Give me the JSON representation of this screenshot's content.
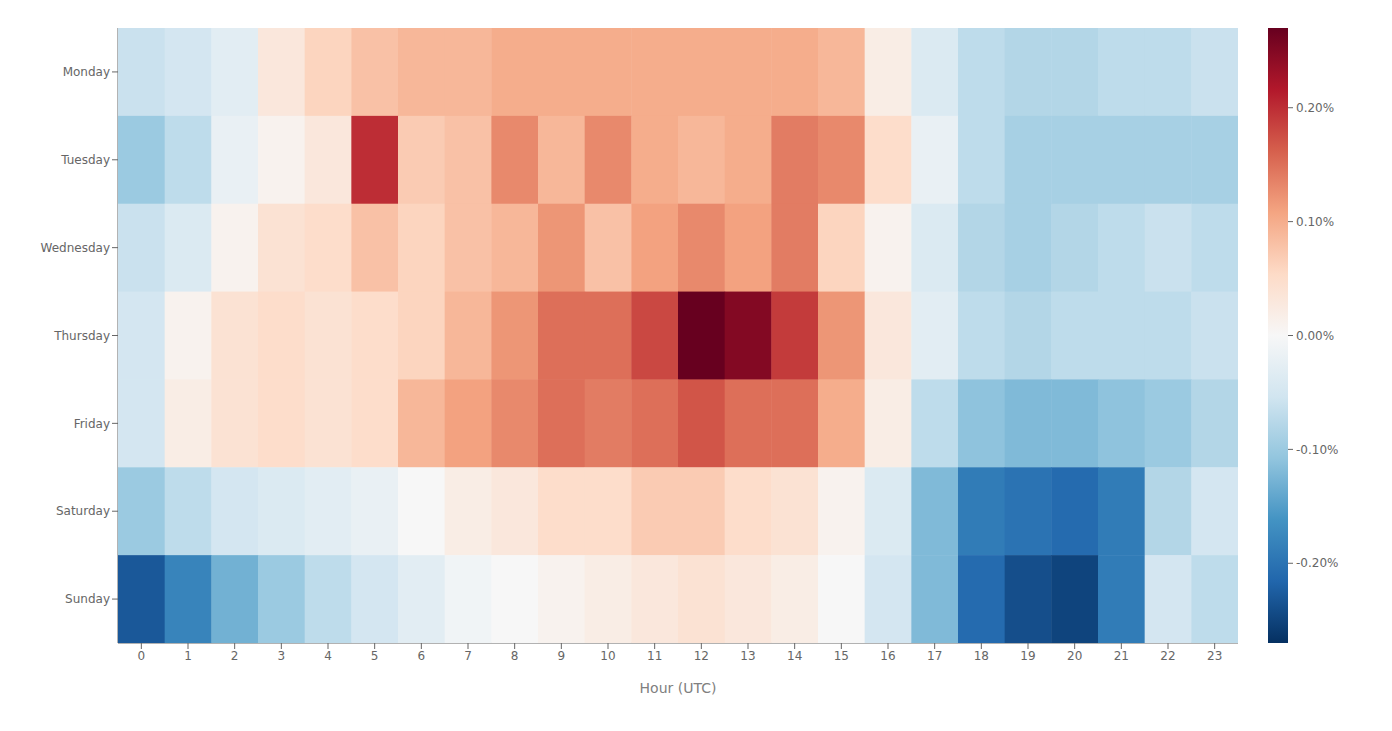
{
  "chart_data": {
    "type": "heatmap",
    "xlabel": "Hour (UTC)",
    "x": [
      0,
      1,
      2,
      3,
      4,
      5,
      6,
      7,
      8,
      9,
      10,
      11,
      12,
      13,
      14,
      15,
      16,
      17,
      18,
      19,
      20,
      21,
      22,
      23
    ],
    "categories": [
      "Monday",
      "Tuesday",
      "Wednesday",
      "Thursday",
      "Friday",
      "Saturday",
      "Sunday"
    ],
    "values": [
      [
        -0.06,
        -0.05,
        -0.03,
        0.03,
        0.06,
        0.08,
        0.09,
        0.09,
        0.1,
        0.1,
        0.1,
        0.1,
        0.1,
        0.1,
        0.1,
        0.09,
        0.02,
        -0.04,
        -0.07,
        -0.08,
        -0.08,
        -0.07,
        -0.07,
        -0.06
      ],
      [
        -0.1,
        -0.07,
        -0.02,
        0.01,
        0.03,
        0.2,
        0.07,
        0.08,
        0.13,
        0.09,
        0.13,
        0.1,
        0.09,
        0.1,
        0.14,
        0.13,
        0.05,
        -0.02,
        -0.07,
        -0.09,
        -0.09,
        -0.09,
        -0.09,
        -0.09
      ],
      [
        -0.06,
        -0.04,
        0.01,
        0.04,
        0.05,
        0.08,
        0.06,
        0.08,
        0.09,
        0.12,
        0.08,
        0.11,
        0.13,
        0.11,
        0.14,
        0.06,
        0.01,
        -0.04,
        -0.08,
        -0.09,
        -0.08,
        -0.07,
        -0.06,
        -0.07
      ],
      [
        -0.05,
        0.01,
        0.04,
        0.05,
        0.04,
        0.05,
        0.06,
        0.09,
        0.12,
        0.15,
        0.15,
        0.18,
        0.27,
        0.25,
        0.19,
        0.12,
        0.03,
        -0.03,
        -0.07,
        -0.08,
        -0.07,
        -0.07,
        -0.07,
        -0.06
      ],
      [
        -0.05,
        0.02,
        0.04,
        0.05,
        0.04,
        0.05,
        0.09,
        0.11,
        0.13,
        0.15,
        0.14,
        0.15,
        0.17,
        0.15,
        0.15,
        0.1,
        0.02,
        -0.07,
        -0.11,
        -0.12,
        -0.12,
        -0.11,
        -0.1,
        -0.08
      ],
      [
        -0.1,
        -0.07,
        -0.05,
        -0.04,
        -0.03,
        -0.02,
        0.0,
        0.02,
        0.03,
        0.05,
        0.05,
        0.07,
        0.07,
        0.05,
        0.04,
        0.01,
        -0.04,
        -0.12,
        -0.19,
        -0.2,
        -0.21,
        -0.19,
        -0.08,
        -0.05
      ],
      [
        -0.23,
        -0.18,
        -0.13,
        -0.1,
        -0.07,
        -0.05,
        -0.03,
        -0.01,
        0.0,
        0.01,
        0.02,
        0.03,
        0.04,
        0.03,
        0.02,
        0.0,
        -0.05,
        -0.12,
        -0.21,
        -0.24,
        -0.25,
        -0.19,
        -0.05,
        -0.07
      ]
    ],
    "xlim": [
      -0.5,
      23.5
    ],
    "xticks": [
      0,
      1,
      2,
      3,
      4,
      5,
      6,
      7,
      8,
      9,
      10,
      11,
      12,
      13,
      14,
      15,
      16,
      17,
      18,
      19,
      20,
      21,
      22,
      23
    ],
    "color_range": [
      -0.27,
      0.27
    ],
    "color_ticks": [
      {
        "value": -0.2,
        "label": "-0.20%"
      },
      {
        "value": -0.1,
        "label": "-0.10%"
      },
      {
        "value": 0.0,
        "label": "0.00%"
      },
      {
        "value": 0.1,
        "label": "0.10%"
      },
      {
        "value": 0.2,
        "label": "0.20%"
      }
    ],
    "grid": false
  }
}
